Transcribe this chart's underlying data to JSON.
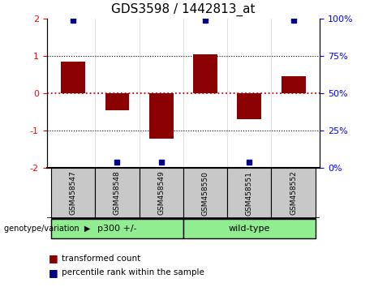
{
  "title": "GDS3598 / 1442813_at",
  "samples": [
    "GSM458547",
    "GSM458548",
    "GSM458549",
    "GSM458550",
    "GSM458551",
    "GSM458552"
  ],
  "transformed_count": [
    0.85,
    -0.45,
    -1.22,
    1.05,
    -0.7,
    0.45
  ],
  "percentile_rank": [
    99,
    4,
    4,
    99,
    4,
    99
  ],
  "bar_color": "#8B0000",
  "dot_color": "#00008B",
  "ylim_left": [
    -2,
    2
  ],
  "yticks_left": [
    -2,
    -1,
    0,
    1,
    2
  ],
  "yticks_right": [
    0,
    25,
    50,
    75,
    100
  ],
  "yticklabels_right": [
    "0%",
    "25%",
    "50%",
    "75%",
    "100%"
  ],
  "hline_color": "#cc0000",
  "groups": [
    {
      "label": "p300 +/-",
      "start": 0,
      "end": 2,
      "color": "#90ee90"
    },
    {
      "label": "wild-type",
      "start": 3,
      "end": 5,
      "color": "#90ee90"
    }
  ],
  "legend_items": [
    {
      "label": "transformed count",
      "color": "#8B0000"
    },
    {
      "label": "percentile rank within the sample",
      "color": "#00008B"
    }
  ],
  "genotype_label": "genotype/variation",
  "arrow_char": "▶",
  "title_fontsize": 11,
  "tick_fontsize": 8,
  "sample_fontsize": 6.5,
  "group_fontsize": 8,
  "legend_fontsize": 7.5
}
